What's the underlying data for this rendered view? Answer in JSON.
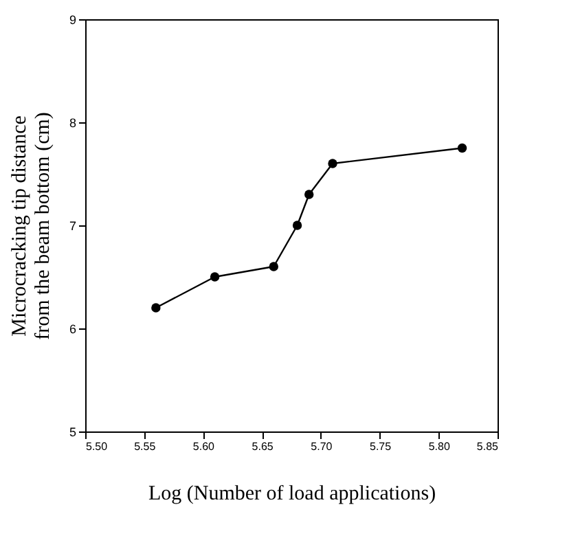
{
  "chart_data": {
    "type": "line",
    "xlabel": "Log (Number of load applications)",
    "ylabel": "Microcracking tip distance\nfrom the beam bottom (cm)",
    "x": [
      5.56,
      5.61,
      5.66,
      5.68,
      5.69,
      5.71,
      5.82
    ],
    "series": [
      {
        "color": "#000000",
        "values": [
          6.2,
          6.5,
          6.6,
          7.0,
          7.3,
          7.6,
          7.75
        ]
      }
    ],
    "xlim": [
      5.5,
      5.85
    ],
    "xticks": [
      {
        "value": 5.5,
        "label": "5.50"
      },
      {
        "value": 5.55,
        "label": "5.55"
      },
      {
        "value": 5.6,
        "label": "5.60"
      },
      {
        "value": 5.65,
        "label": "5.65"
      },
      {
        "value": 5.7,
        "label": "5.70"
      },
      {
        "value": 5.75,
        "label": "5.75"
      },
      {
        "value": 5.8,
        "label": "5.80"
      },
      {
        "value": 5.85,
        "label": "5.85"
      }
    ],
    "ylim": [
      5,
      9
    ],
    "yticks": [
      5,
      6,
      7,
      8,
      9
    ],
    "grid": false,
    "marker": "circle",
    "line_style": "solid"
  }
}
